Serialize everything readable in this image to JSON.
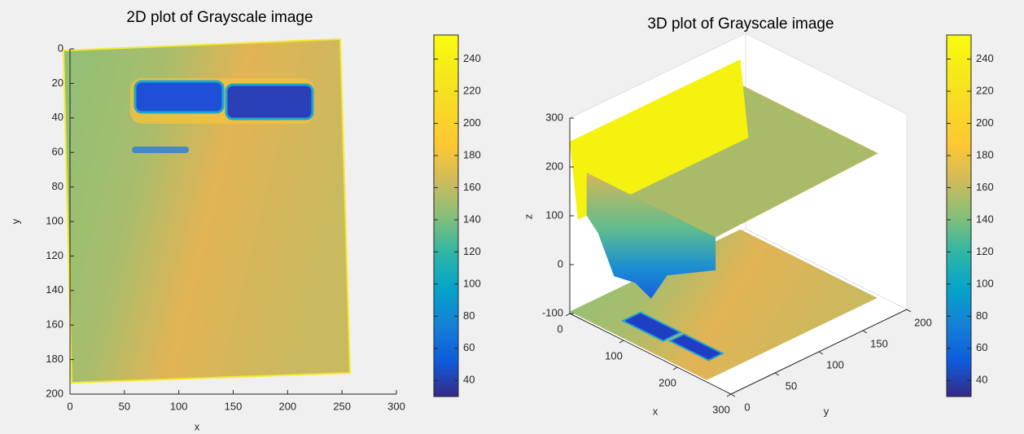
{
  "chart_data": [
    {
      "type": "heatmap",
      "title": "2D plot of Grayscale image",
      "xlabel": "x",
      "ylabel": "y",
      "xlim": [
        0,
        300
      ],
      "xticks": [
        0,
        50,
        100,
        150,
        200,
        250,
        300
      ],
      "ylim": [
        0,
        200
      ],
      "y_reversed": true,
      "yticks": [
        0,
        20,
        40,
        60,
        80,
        100,
        120,
        140,
        160,
        180,
        200
      ],
      "colormap": "parula",
      "clim": [
        30,
        255
      ],
      "cticks": [
        40,
        60,
        80,
        100,
        120,
        140,
        160,
        180,
        200,
        220,
        240
      ]
    },
    {
      "type": "surface3d",
      "title": "3D plot of Grayscale image",
      "xlabel": "x",
      "ylabel": "y",
      "zlabel": "z",
      "xlim": [
        0,
        300
      ],
      "xticks": [
        0,
        100,
        200,
        300
      ],
      "ylim": [
        0,
        200
      ],
      "yticks": [
        0,
        50,
        100,
        150,
        200
      ],
      "zlim": [
        -100,
        300
      ],
      "zticks": [
        -100,
        0,
        100,
        200,
        300
      ],
      "colormap": "parula",
      "clim": [
        30,
        255
      ],
      "cticks": [
        40,
        60,
        80,
        100,
        120,
        140,
        160,
        180,
        200,
        220,
        240
      ]
    }
  ]
}
